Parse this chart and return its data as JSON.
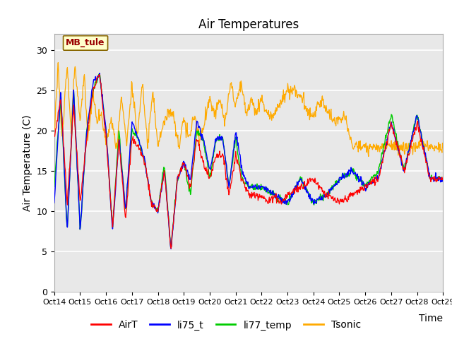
{
  "title": "Air Temperatures",
  "ylabel": "Air Temperature (C)",
  "xlabel": "Time",
  "site_label": "MB_tule",
  "ylim": [
    0,
    32
  ],
  "xlim": [
    0,
    15
  ],
  "yticks": [
    0,
    5,
    10,
    15,
    20,
    25,
    30
  ],
  "xtick_labels": [
    "Oct 14",
    "Oct 15",
    "Oct 16",
    "Oct 17",
    "Oct 18",
    "Oct 19",
    "Oct 20",
    "Oct 21",
    "Oct 22",
    "Oct 23",
    "Oct 24",
    "Oct 25",
    "Oct 26",
    "Oct 27",
    "Oct 28",
    "Oct 29"
  ],
  "colors": {
    "AirT": "#ff0000",
    "li75_t": "#0000ff",
    "li77_temp": "#00cc00",
    "Tsonic": "#ffaa00"
  },
  "background_color": "#e8e8e8",
  "title_fontsize": 12,
  "axis_label_fontsize": 10,
  "tick_fontsize": 9,
  "legend_fontsize": 10
}
